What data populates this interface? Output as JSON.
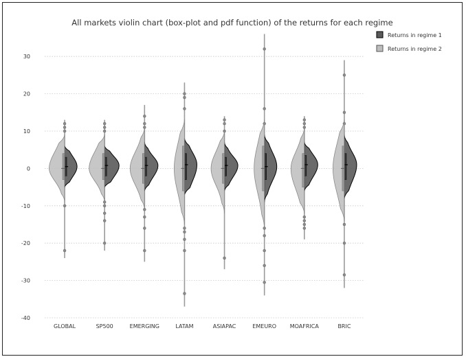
{
  "chart_data": {
    "type": "violin",
    "title": "All markets violin chart (box-plot and pdf function) of the returns for each regime",
    "categories": [
      "GLOBAL",
      "SP500",
      "EMERGING",
      "LATAM",
      "ASIAPAC",
      "EMEURO",
      "MOAFRICA",
      "BRIC"
    ],
    "ylim": [
      -40,
      35
    ],
    "yticks": [
      -40,
      -30,
      -20,
      -10,
      0,
      10,
      20,
      30
    ],
    "grid": true,
    "legend_position": "top-right",
    "series": [
      {
        "name": "Returns in regime 1",
        "side": "right",
        "color": "#5a5a5a",
        "stats": [
          {
            "min": -5,
            "q1": -2,
            "median": 0.5,
            "q3": 3,
            "max": 6,
            "peak": 0.6
          },
          {
            "min": -5,
            "q1": -2,
            "median": 0.8,
            "q3": 3,
            "max": 6,
            "peak": 0.7
          },
          {
            "min": -6,
            "q1": -2,
            "median": 0.8,
            "q3": 3,
            "max": 7,
            "peak": 0.65
          },
          {
            "min": -7,
            "q1": -3,
            "median": 1,
            "q3": 4,
            "max": 8,
            "peak": 0.6
          },
          {
            "min": -6,
            "q1": -2,
            "median": 0.8,
            "q3": 3,
            "max": 7,
            "peak": 0.65
          },
          {
            "min": -9,
            "q1": -3,
            "median": 0.5,
            "q3": 4,
            "max": 9,
            "peak": 0.6
          },
          {
            "min": -6,
            "q1": -2,
            "median": 1,
            "q3": 3.5,
            "max": 7,
            "peak": 0.65
          },
          {
            "min": -8,
            "q1": -3,
            "median": 1,
            "q3": 4,
            "max": 9,
            "peak": 0.6
          }
        ],
        "outliers": [
          [
            10,
            11,
            12
          ],
          [
            10,
            11,
            12
          ],
          [
            11,
            12,
            14
          ],
          [
            16,
            19,
            20
          ],
          [
            10,
            12,
            13
          ],
          [
            12,
            16,
            32
          ],
          [
            11,
            12,
            13
          ],
          [
            12,
            15,
            25
          ]
        ]
      },
      {
        "name": "Returns in regime 2",
        "side": "left",
        "color": "#bdbdbd",
        "stats": [
          {
            "min": -9,
            "q1": -3,
            "median": 0,
            "q3": 4,
            "max": 9,
            "peak": 0.75
          },
          {
            "min": -9,
            "q1": -3,
            "median": 0,
            "q3": 4,
            "max": 9,
            "peak": 0.75
          },
          {
            "min": -11,
            "q1": -4,
            "median": 0,
            "q3": 4,
            "max": 11,
            "peak": 0.7
          },
          {
            "min": -15,
            "q1": -6,
            "median": 0,
            "q3": 6,
            "max": 13,
            "peak": 0.5
          },
          {
            "min": -12,
            "q1": -4,
            "median": 0,
            "q3": 4,
            "max": 10,
            "peak": 0.65
          },
          {
            "min": -16,
            "q1": -6,
            "median": 0,
            "q3": 6,
            "max": 13,
            "peak": 0.5
          },
          {
            "min": -12,
            "q1": -5,
            "median": 0,
            "q3": 4,
            "max": 11,
            "peak": 0.65
          },
          {
            "min": -14,
            "q1": -6,
            "median": 0,
            "q3": 6,
            "max": 13,
            "peak": 0.55
          }
        ],
        "outliers": [
          [
            -10,
            -22
          ],
          [
            -9,
            -10,
            -12,
            -14,
            -20
          ],
          [
            -11,
            -13,
            -16,
            -22
          ],
          [
            -16,
            -17,
            -19,
            -22,
            -33.5
          ],
          [
            -24
          ],
          [
            -16,
            -18,
            -22,
            -26,
            -30.5
          ],
          [
            -13,
            -14,
            -15,
            -16
          ],
          [
            -15,
            -20,
            -28.5
          ]
        ]
      }
    ],
    "range_lines": [
      {
        "min": -24,
        "max": 13
      },
      {
        "min": -22,
        "max": 13
      },
      {
        "min": -25,
        "max": 17
      },
      {
        "min": -37,
        "max": 23
      },
      {
        "min": -27,
        "max": 14
      },
      {
        "min": -34,
        "max": 36
      },
      {
        "min": -19,
        "max": 14
      },
      {
        "min": -32,
        "max": 29
      }
    ]
  }
}
